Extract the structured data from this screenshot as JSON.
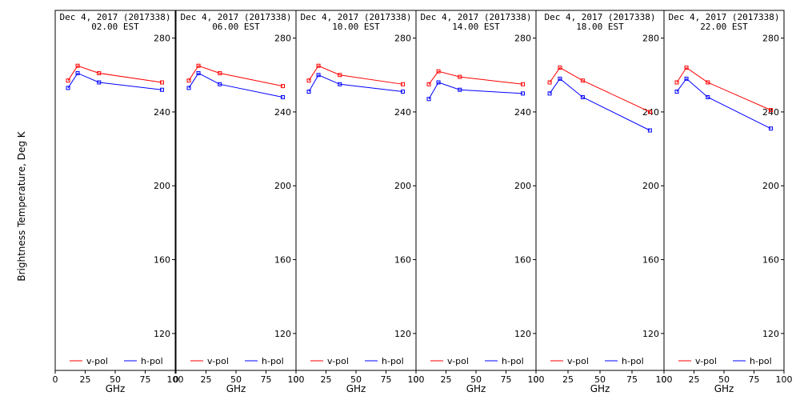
{
  "chart_data": {
    "type": "line",
    "ylabel": "Brightness Temperature, Deg K",
    "xlabel": "GHz",
    "xlim": [
      0,
      100
    ],
    "ylim": [
      100,
      295
    ],
    "x_ticks": [
      0,
      25,
      50,
      75,
      100
    ],
    "y_ticks": [
      120,
      160,
      200,
      240,
      280
    ],
    "legend": [
      "v-pol",
      "h-pol"
    ],
    "colors": {
      "v-pol": "#ff0000",
      "h-pol": "#0000ff"
    },
    "panels": [
      {
        "date": "Dec  4, 2017 (2017338)",
        "time": "02.00 EST",
        "x_ghz": [
          10.7,
          18.7,
          36.5,
          89.0
        ],
        "series": [
          {
            "name": "v-pol",
            "values": [
              257,
              265,
              261,
              256
            ]
          },
          {
            "name": "h-pol",
            "values": [
              253,
              261,
              256,
              252
            ]
          }
        ]
      },
      {
        "date": "Dec  4, 2017 (2017338)",
        "time": "06.00 EST",
        "x_ghz": [
          10.7,
          18.7,
          36.5,
          89.0
        ],
        "series": [
          {
            "name": "v-pol",
            "values": [
              257,
              265,
              261,
              254
            ]
          },
          {
            "name": "h-pol",
            "values": [
              253,
              261,
              255,
              248
            ]
          }
        ]
      },
      {
        "date": "Dec  4, 2017 (2017338)",
        "time": "10.00 EST",
        "x_ghz": [
          10.7,
          18.7,
          36.5,
          89.0
        ],
        "series": [
          {
            "name": "v-pol",
            "values": [
              257,
              265,
              260,
              255
            ]
          },
          {
            "name": "h-pol",
            "values": [
              251,
              260,
              255,
              251
            ]
          }
        ]
      },
      {
        "date": "Dec  4, 2017 (2017338)",
        "time": "14.00 EST",
        "x_ghz": [
          10.7,
          18.7,
          36.5,
          89.0
        ],
        "series": [
          {
            "name": "v-pol",
            "values": [
              255,
              262,
              259,
              255
            ]
          },
          {
            "name": "h-pol",
            "values": [
              247,
              256,
              252,
              250
            ]
          }
        ]
      },
      {
        "date": "Dec  4, 2017 (2017338)",
        "time": "18.00 EST",
        "x_ghz": [
          10.7,
          18.7,
          36.5,
          89.0
        ],
        "series": [
          {
            "name": "v-pol",
            "values": [
              256,
              264,
              257,
              240
            ]
          },
          {
            "name": "h-pol",
            "values": [
              250,
              258,
              248,
              230
            ]
          }
        ]
      },
      {
        "date": "Dec  4, 2017 (2017338)",
        "time": "22.00 EST",
        "x_ghz": [
          10.7,
          18.7,
          36.5,
          89.0
        ],
        "series": [
          {
            "name": "v-pol",
            "values": [
              256,
              264,
              256,
              241
            ]
          },
          {
            "name": "h-pol",
            "values": [
              251,
              258,
              248,
              231
            ]
          }
        ]
      }
    ]
  }
}
